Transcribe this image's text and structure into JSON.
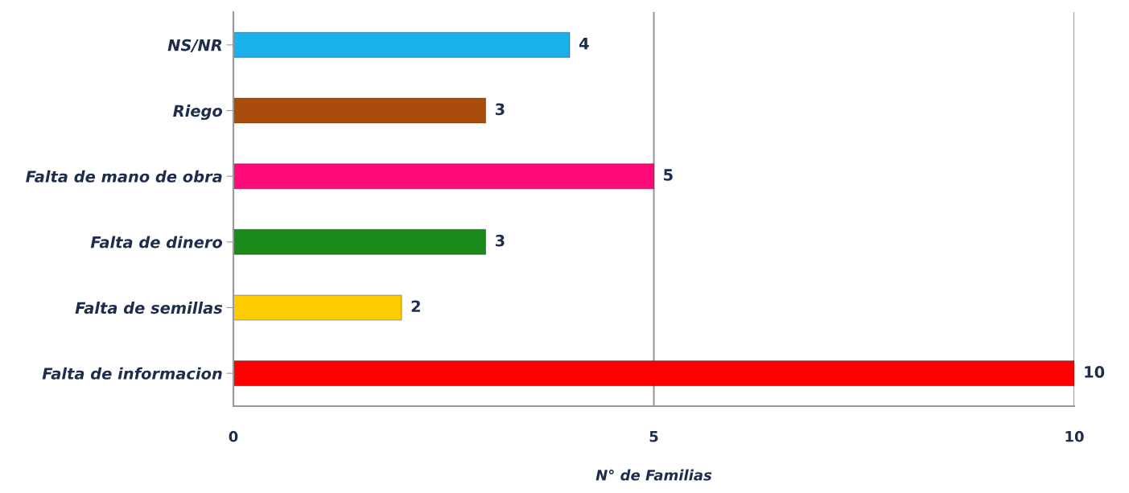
{
  "chart_data": {
    "type": "bar",
    "orientation": "horizontal",
    "xlabel": "N° de Familias",
    "categories": [
      "NS/NR",
      "Riego",
      "Falta de mano de obra",
      "Falta de dinero",
      "Falta de semillas",
      "Falta de informacion"
    ],
    "values": [
      4,
      3,
      5,
      3,
      2,
      10
    ],
    "colors": [
      "#1ab0e8",
      "#a84d0c",
      "#ff0a78",
      "#1a8a1a",
      "#ffcc00",
      "#ff0000"
    ],
    "xlim": [
      0,
      10
    ],
    "xticks": [
      0,
      5,
      10
    ],
    "grid": "x",
    "data_labels": true
  }
}
